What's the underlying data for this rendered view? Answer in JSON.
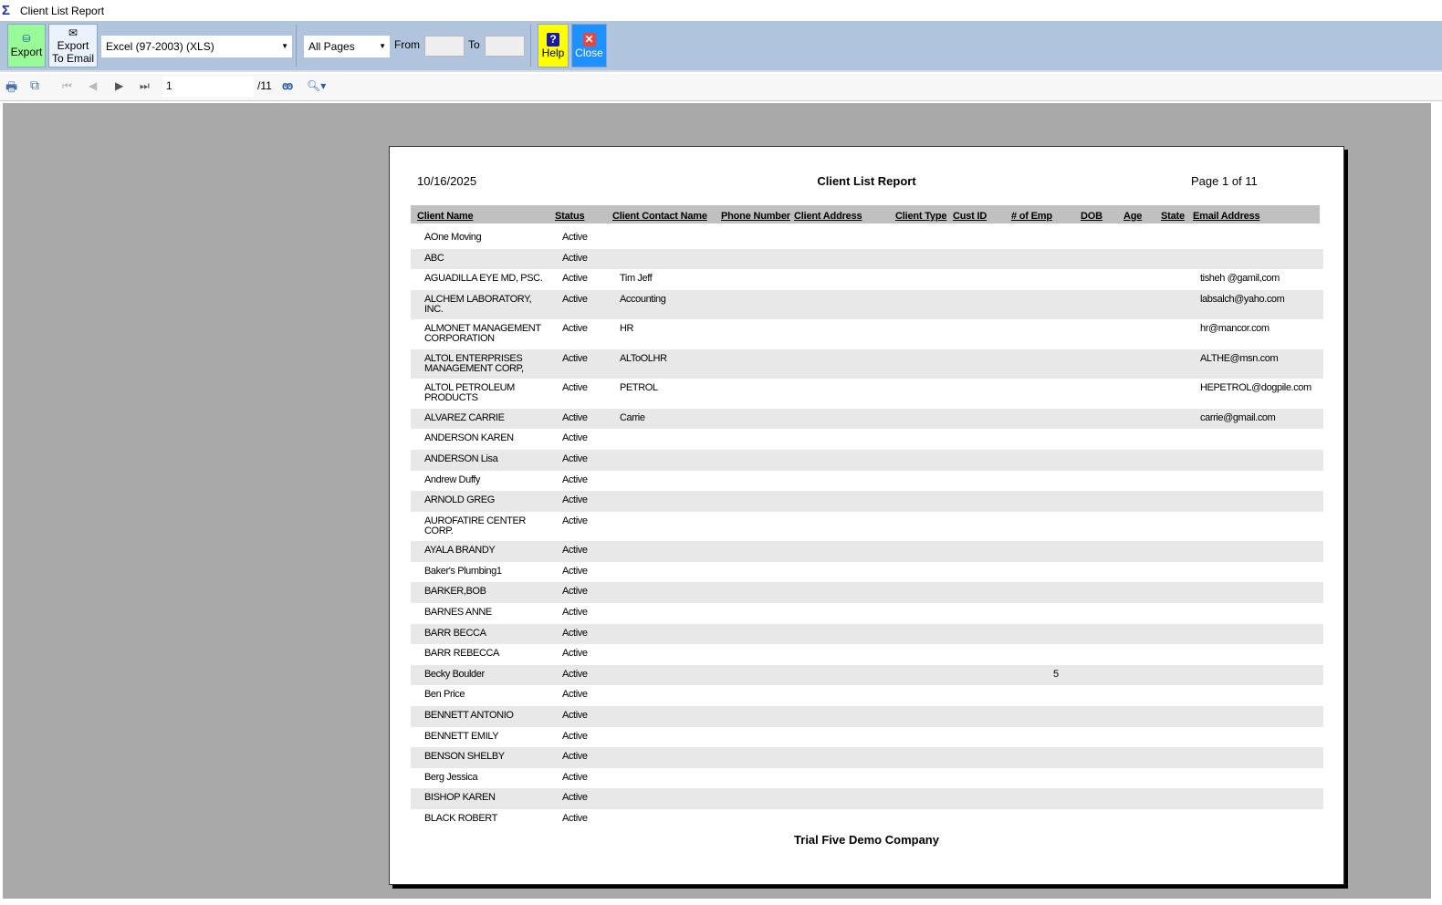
{
  "window": {
    "title": "Client List Report"
  },
  "toolbar": {
    "export": "Export",
    "export_email": "Export\nTo Email",
    "format": "Excel (97-2003) (XLS)",
    "pages": "All Pages",
    "from_label": "From",
    "to_label": "To",
    "from_value": "",
    "to_value": "",
    "help": "Help",
    "close": "Close"
  },
  "nav": {
    "page_input": "1",
    "page_total": "/11"
  },
  "report": {
    "date": "10/16/2025",
    "title": "Client List Report",
    "page_label": "Page 1 of 11",
    "footer": "Trial Five Demo Company",
    "columns": [
      "Client Name",
      "Status",
      "Client Contact Name",
      "Phone Number",
      "Client Address",
      "Client Type",
      "Cust ID",
      "# of Emp",
      "DOB",
      "Age",
      "State",
      "Email Address"
    ],
    "rows": [
      {
        "name": "AOne Moving",
        "status": "Active",
        "contact": "",
        "emp": "",
        "email": ""
      },
      {
        "name": "ABC",
        "status": "Active",
        "contact": "",
        "emp": "",
        "email": ""
      },
      {
        "name": "AGUADILLA EYE MD, PSC.",
        "status": "Active",
        "contact": "Tim Jeff",
        "emp": "",
        "email": "tisheh @gamil,com"
      },
      {
        "name": "ALCHEM LABORATORY,\nINC.",
        "status": "Active",
        "contact": "Accounting",
        "emp": "",
        "email": "labsalch@yaho.com"
      },
      {
        "name": "ALMONET MANAGEMENT\nCORPORATION",
        "status": "Active",
        "contact": "HR",
        "emp": "",
        "email": "hr@mancor.com"
      },
      {
        "name": "ALTOL ENTERPRISES\nMANAGEMENT CORP,",
        "status": "Active",
        "contact": "ALToOLHR",
        "emp": "",
        "email": "ALTHE@msn.com"
      },
      {
        "name": "ALTOL PETROLEUM\nPRODUCTS",
        "status": "Active",
        "contact": "PETROL",
        "emp": "",
        "email": "HEPETROL@dogpile.com"
      },
      {
        "name": "ALVAREZ CARRIE",
        "status": "Active",
        "contact": "Carrie",
        "emp": "",
        "email": "carrie@gmail.com"
      },
      {
        "name": "ANDERSON KAREN",
        "status": "Active",
        "contact": "",
        "emp": "",
        "email": ""
      },
      {
        "name": "ANDERSON Lisa",
        "status": "Active",
        "contact": "",
        "emp": "",
        "email": ""
      },
      {
        "name": "Andrew Duffy",
        "status": "Active",
        "contact": "",
        "emp": "",
        "email": ""
      },
      {
        "name": "ARNOLD GREG",
        "status": "Active",
        "contact": "",
        "emp": "",
        "email": ""
      },
      {
        "name": "AUROFATIRE CENTER\nCORP.",
        "status": "Active",
        "contact": "",
        "emp": "",
        "email": ""
      },
      {
        "name": "AYALA BRANDY",
        "status": "Active",
        "contact": "",
        "emp": "",
        "email": ""
      },
      {
        "name": "Baker's Plumbing1",
        "status": "Active",
        "contact": "",
        "emp": "",
        "email": ""
      },
      {
        "name": "BARKER,BOB",
        "status": "Active",
        "contact": "",
        "emp": "",
        "email": ""
      },
      {
        "name": "BARNES ANNE",
        "status": "Active",
        "contact": "",
        "emp": "",
        "email": ""
      },
      {
        "name": "BARR BECCA",
        "status": "Active",
        "contact": "",
        "emp": "",
        "email": ""
      },
      {
        "name": "BARR REBECCA",
        "status": "Active",
        "contact": "",
        "emp": "",
        "email": ""
      },
      {
        "name": "Becky Boulder",
        "status": "Active",
        "contact": "",
        "emp": "5",
        "email": ""
      },
      {
        "name": "Ben Price",
        "status": "Active",
        "contact": "",
        "emp": "",
        "email": ""
      },
      {
        "name": "BENNETT ANTONIO",
        "status": "Active",
        "contact": "",
        "emp": "",
        "email": ""
      },
      {
        "name": "BENNETT EMILY",
        "status": "Active",
        "contact": "",
        "emp": "",
        "email": ""
      },
      {
        "name": "BENSON SHELBY",
        "status": "Active",
        "contact": "",
        "emp": "",
        "email": ""
      },
      {
        "name": "Berg Jessica",
        "status": "Active",
        "contact": "",
        "emp": "",
        "email": ""
      },
      {
        "name": "BISHOP KAREN",
        "status": "Active",
        "contact": "",
        "emp": "",
        "email": ""
      },
      {
        "name": "BLACK ROBERT",
        "status": "Active",
        "contact": "",
        "emp": "",
        "email": ""
      }
    ]
  },
  "colors": {
    "toolbar": "#b0c4de",
    "export": "#98fb98",
    "help": "#ffff00",
    "close": "#1e90ff",
    "viewer": "#a9a9a9"
  }
}
